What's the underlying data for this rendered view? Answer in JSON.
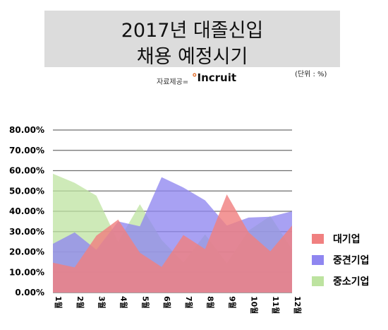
{
  "header": {
    "title_line1": "2017년 대졸신입",
    "title_line2": "채용 예정시기",
    "source_label": "자료제공=",
    "source_logo": "Incruit",
    "unit": "(단위 : %)"
  },
  "chart_data": {
    "type": "area",
    "title": "2017년 대졸신입 채용 예정시기",
    "categories": [
      "1월",
      "2월",
      "3월",
      "4월",
      "5월",
      "6월",
      "7월",
      "8월",
      "9월",
      "10월",
      "11월",
      "12월"
    ],
    "y_ticks": [
      "0.00%",
      "10.00%",
      "20.00%",
      "30.00%",
      "40.00%",
      "50.00%",
      "60.00%",
      "70.00%",
      "80.00%"
    ],
    "ylim": [
      0,
      80
    ],
    "grid": true,
    "legend_position": "right",
    "series": [
      {
        "name": "대기업",
        "color": "#f08080",
        "values": [
          14.7,
          12.4,
          28.0,
          35.9,
          19.6,
          12.6,
          28.3,
          21.4,
          48.3,
          29.7,
          20.3,
          33.0
        ]
      },
      {
        "name": "중견기업",
        "color": "#8f86f0",
        "values": [
          24.0,
          29.6,
          21.1,
          35.0,
          32.6,
          56.8,
          51.7,
          45.4,
          33.0,
          36.9,
          37.3,
          40.0
        ]
      },
      {
        "name": "중소기업",
        "color": "#bde3a0",
        "values": [
          58.5,
          54.0,
          47.7,
          25.0,
          43.5,
          25.9,
          14.8,
          28.6,
          14.5,
          30.5,
          37.7,
          21.2
        ]
      }
    ]
  }
}
